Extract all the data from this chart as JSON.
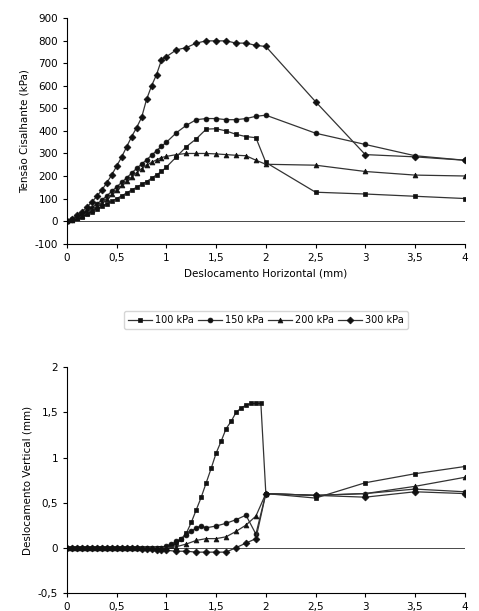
{
  "top_chart": {
    "xlabel": "Deslocamento Horizontal (mm)",
    "ylabel": "Tensão Cisalhante (kPa)",
    "xlim": [
      0,
      4
    ],
    "ylim": [
      -100,
      900
    ],
    "xticks": [
      0,
      0.5,
      1,
      1.5,
      2,
      2.5,
      3,
      3.5,
      4
    ],
    "yticks": [
      -100,
      0,
      100,
      200,
      300,
      400,
      500,
      600,
      700,
      800,
      900
    ],
    "series": {
      "100 kPa": {
        "x": [
          0,
          0.05,
          0.1,
          0.15,
          0.2,
          0.25,
          0.3,
          0.35,
          0.4,
          0.45,
          0.5,
          0.55,
          0.6,
          0.65,
          0.7,
          0.75,
          0.8,
          0.85,
          0.9,
          0.95,
          1.0,
          1.1,
          1.2,
          1.3,
          1.4,
          1.5,
          1.6,
          1.7,
          1.8,
          1.9,
          2.0,
          2.5,
          3.0,
          3.5,
          4.0
        ],
        "y": [
          0,
          5,
          12,
          20,
          30,
          42,
          55,
          65,
          75,
          88,
          100,
          112,
          125,
          138,
          150,
          163,
          175,
          190,
          205,
          220,
          240,
          285,
          330,
          365,
          408,
          410,
          400,
          385,
          375,
          370,
          260,
          128,
          120,
          110,
          100
        ],
        "marker": "s"
      },
      "150 kPa": {
        "x": [
          0,
          0.05,
          0.1,
          0.15,
          0.2,
          0.25,
          0.3,
          0.35,
          0.4,
          0.45,
          0.5,
          0.55,
          0.6,
          0.65,
          0.7,
          0.75,
          0.8,
          0.85,
          0.9,
          0.95,
          1.0,
          1.1,
          1.2,
          1.3,
          1.4,
          1.5,
          1.6,
          1.7,
          1.8,
          1.9,
          2.0,
          2.5,
          3.0,
          3.5,
          4.0
        ],
        "y": [
          0,
          8,
          18,
          30,
          44,
          60,
          76,
          93,
          112,
          132,
          152,
          172,
          192,
          213,
          234,
          253,
          272,
          292,
          312,
          332,
          350,
          392,
          425,
          450,
          455,
          455,
          450,
          450,
          455,
          465,
          470,
          390,
          340,
          290,
          270
        ],
        "marker": "o"
      },
      "200 kPa": {
        "x": [
          0,
          0.05,
          0.1,
          0.15,
          0.2,
          0.25,
          0.3,
          0.35,
          0.4,
          0.45,
          0.5,
          0.55,
          0.6,
          0.65,
          0.7,
          0.75,
          0.8,
          0.85,
          0.9,
          0.95,
          1.0,
          1.1,
          1.2,
          1.3,
          1.4,
          1.5,
          1.6,
          1.7,
          1.8,
          1.9,
          2.0,
          2.5,
          3.0,
          3.5,
          4.0
        ],
        "y": [
          0,
          6,
          14,
          24,
          36,
          50,
          65,
          82,
          100,
          118,
          138,
          158,
          177,
          196,
          215,
          232,
          248,
          260,
          272,
          282,
          287,
          295,
          300,
          300,
          300,
          298,
          295,
          292,
          290,
          270,
          252,
          248,
          220,
          204,
          200
        ],
        "marker": "^"
      },
      "300 kPa": {
        "x": [
          0,
          0.05,
          0.1,
          0.15,
          0.2,
          0.25,
          0.3,
          0.35,
          0.4,
          0.45,
          0.5,
          0.55,
          0.6,
          0.65,
          0.7,
          0.75,
          0.8,
          0.85,
          0.9,
          0.95,
          1.0,
          1.1,
          1.2,
          1.3,
          1.4,
          1.5,
          1.6,
          1.7,
          1.8,
          1.9,
          2.0,
          2.5,
          3.0,
          3.5,
          4.0
        ],
        "y": [
          0,
          10,
          25,
          42,
          62,
          85,
          110,
          138,
          170,
          205,
          245,
          285,
          330,
          375,
          415,
          460,
          540,
          600,
          650,
          715,
          730,
          760,
          770,
          790,
          800,
          800,
          800,
          790,
          790,
          780,
          775,
          530,
          295,
          285,
          270
        ],
        "marker": "D"
      }
    }
  },
  "bottom_chart": {
    "xlabel": "Deslocamento Horizontal (mm)",
    "ylabel": "Deslocamento Vertical (mm)",
    "xlim": [
      0,
      4
    ],
    "ylim": [
      -0.5,
      2
    ],
    "xticks": [
      0,
      0.5,
      1,
      1.5,
      2,
      2.5,
      3,
      3.5,
      4
    ],
    "yticks": [
      -0.5,
      0,
      0.5,
      1,
      1.5,
      2
    ],
    "series": {
      "100 kPa": {
        "x": [
          0,
          0.05,
          0.1,
          0.15,
          0.2,
          0.25,
          0.3,
          0.35,
          0.4,
          0.45,
          0.5,
          0.55,
          0.6,
          0.65,
          0.7,
          0.75,
          0.8,
          0.85,
          0.9,
          0.95,
          1.0,
          1.05,
          1.1,
          1.15,
          1.2,
          1.25,
          1.3,
          1.35,
          1.4,
          1.45,
          1.5,
          1.55,
          1.6,
          1.65,
          1.7,
          1.75,
          1.8,
          1.85,
          1.9,
          1.95,
          2.0,
          2.5,
          3.0,
          3.5,
          4.0
        ],
        "y": [
          0,
          0,
          0,
          0,
          0,
          0,
          0,
          0,
          0,
          0,
          0,
          0,
          0,
          0,
          0,
          0,
          0,
          0,
          0,
          0,
          0,
          0.02,
          0.05,
          0.1,
          0.16,
          0.28,
          0.42,
          0.56,
          0.72,
          0.88,
          1.05,
          1.18,
          1.32,
          1.4,
          1.5,
          1.55,
          1.58,
          1.6,
          1.6,
          1.6,
          0.6,
          0.55,
          0.72,
          0.82,
          0.9
        ],
        "marker": "s"
      },
      "150 kPa": {
        "x": [
          0,
          0.05,
          0.1,
          0.15,
          0.2,
          0.25,
          0.3,
          0.35,
          0.4,
          0.45,
          0.5,
          0.55,
          0.6,
          0.65,
          0.7,
          0.75,
          0.8,
          0.85,
          0.9,
          0.95,
          1.0,
          1.05,
          1.1,
          1.15,
          1.2,
          1.25,
          1.3,
          1.35,
          1.4,
          1.5,
          1.6,
          1.7,
          1.8,
          1.9,
          2.0,
          2.5,
          3.0,
          3.5,
          4.0
        ],
        "y": [
          0,
          0,
          0,
          0,
          0,
          0,
          0,
          0,
          0,
          0,
          0,
          0,
          0,
          0,
          0,
          0,
          0,
          0,
          0,
          0,
          0.02,
          0.04,
          0.07,
          0.1,
          0.14,
          0.18,
          0.22,
          0.24,
          0.22,
          0.24,
          0.27,
          0.31,
          0.36,
          0.15,
          0.6,
          0.58,
          0.6,
          0.65,
          0.62
        ],
        "marker": "o"
      },
      "200 kPa": {
        "x": [
          0,
          0.05,
          0.1,
          0.15,
          0.2,
          0.25,
          0.3,
          0.35,
          0.4,
          0.45,
          0.5,
          0.55,
          0.6,
          0.65,
          0.7,
          0.75,
          0.8,
          0.85,
          0.9,
          0.95,
          1.0,
          1.1,
          1.2,
          1.3,
          1.4,
          1.5,
          1.6,
          1.7,
          1.8,
          1.9,
          2.0,
          2.5,
          3.0,
          3.5,
          4.0
        ],
        "y": [
          0,
          0,
          0,
          0,
          0,
          0,
          0,
          0,
          0,
          0,
          0,
          0,
          0,
          0,
          0,
          0,
          0,
          0,
          0,
          0,
          0,
          0.01,
          0.04,
          0.08,
          0.1,
          0.1,
          0.12,
          0.18,
          0.25,
          0.35,
          0.6,
          0.58,
          0.6,
          0.68,
          0.78
        ],
        "marker": "^"
      },
      "300 kPa": {
        "x": [
          0,
          0.05,
          0.1,
          0.15,
          0.2,
          0.25,
          0.3,
          0.35,
          0.4,
          0.45,
          0.5,
          0.55,
          0.6,
          0.65,
          0.7,
          0.75,
          0.8,
          0.85,
          0.9,
          0.95,
          1.0,
          1.1,
          1.2,
          1.3,
          1.4,
          1.5,
          1.6,
          1.7,
          1.8,
          1.9,
          2.0,
          2.5,
          3.0,
          3.5,
          4.0
        ],
        "y": [
          0,
          0,
          0,
          0,
          0,
          0,
          0,
          0,
          0,
          0,
          0,
          0,
          0,
          0,
          0,
          -0.01,
          -0.02,
          -0.02,
          -0.03,
          -0.03,
          -0.03,
          -0.04,
          -0.04,
          -0.05,
          -0.05,
          -0.05,
          -0.05,
          0.0,
          0.05,
          0.1,
          0.6,
          0.58,
          0.56,
          0.62,
          0.6
        ],
        "marker": "D"
      }
    }
  },
  "legend_labels": [
    "100 kPa",
    "150 kPa",
    "200 kPa",
    "300 kPa"
  ],
  "line_color": "#333333",
  "marker_color": "#111111"
}
